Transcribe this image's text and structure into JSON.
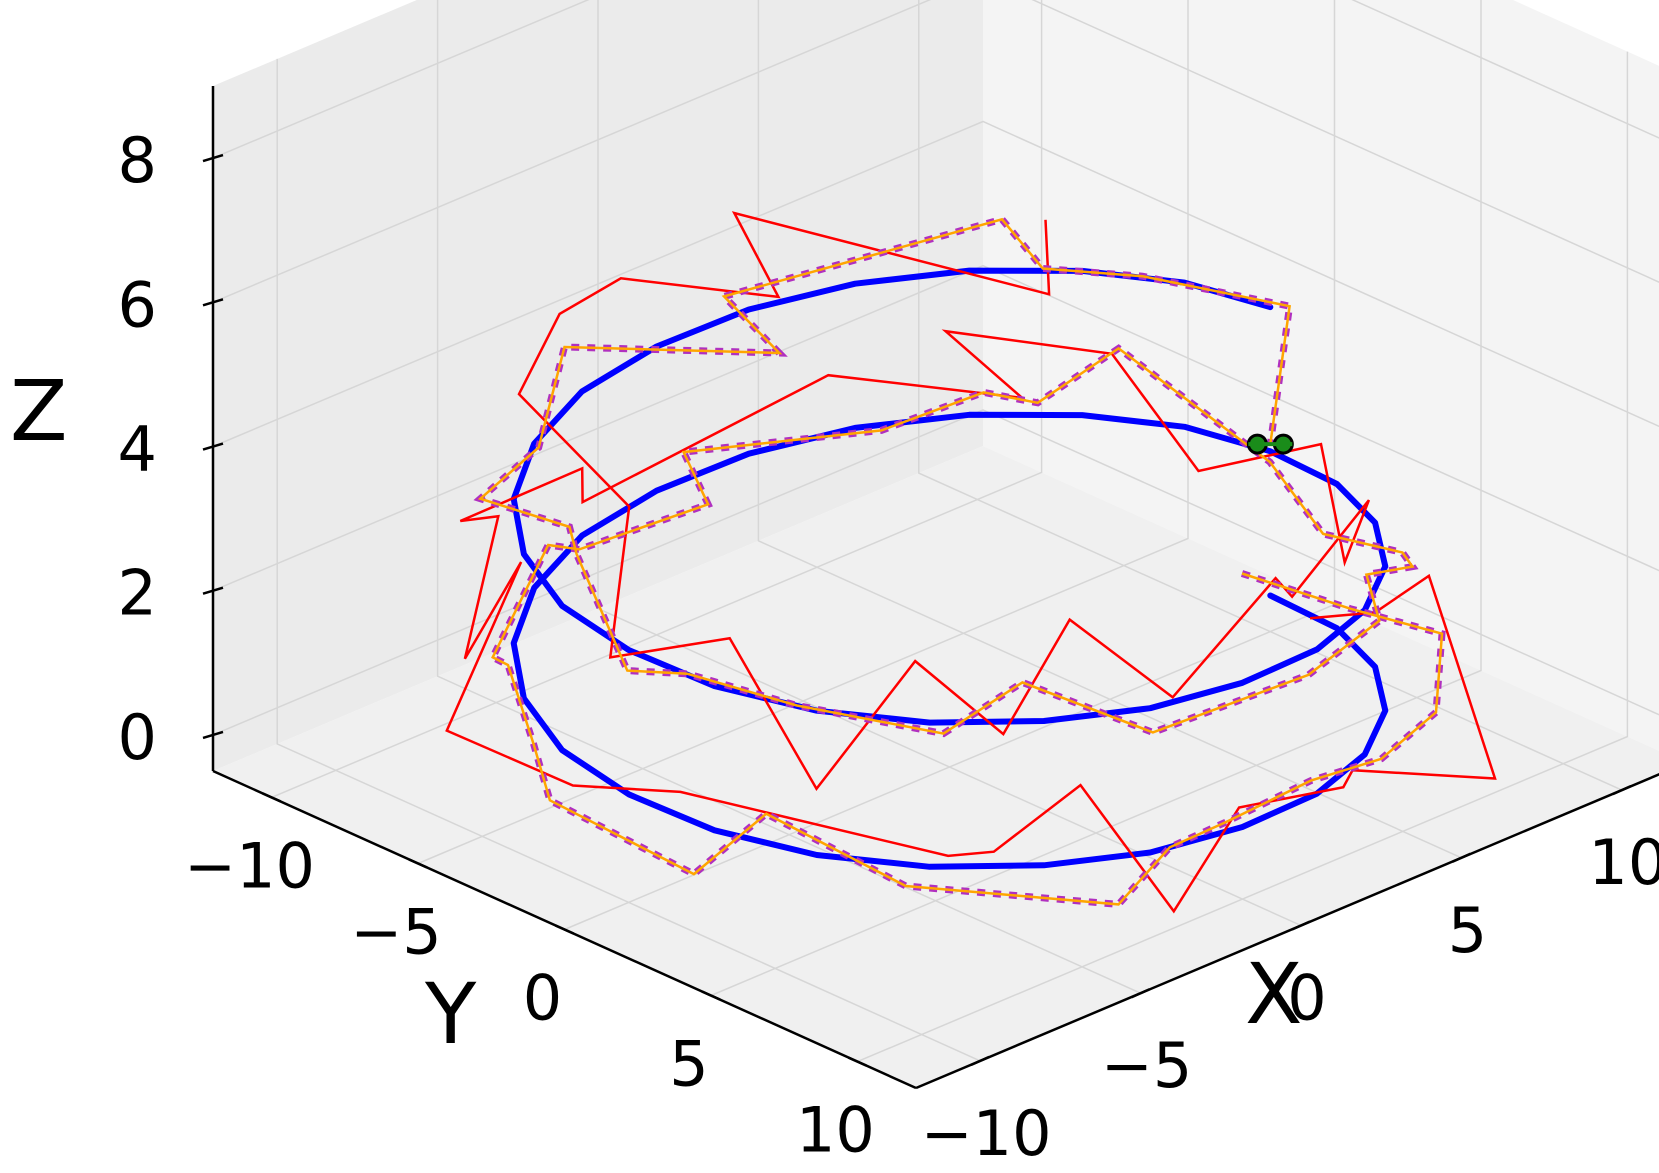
{
  "chart_data": {
    "type": "line3d",
    "title": "",
    "axes": {
      "x": {
        "label": "X",
        "ticks": [
          -10,
          -5,
          0,
          5,
          10
        ],
        "tick_labels": [
          "−10",
          "−5",
          "0",
          "5",
          "10"
        ],
        "lim": [
          -12,
          12
        ]
      },
      "y": {
        "label": "Y",
        "ticks": [
          -10,
          -5,
          0,
          5,
          10
        ],
        "tick_labels": [
          "−10",
          "−5",
          "0",
          "5",
          "10"
        ],
        "lim": [
          -12,
          12
        ]
      },
      "z": {
        "label": "Z",
        "ticks": [
          0,
          2,
          4,
          6,
          8
        ],
        "tick_labels": [
          "0",
          "2",
          "4",
          "6",
          "8"
        ],
        "lim": [
          -0.5,
          9
        ]
      }
    },
    "grid": true,
    "series": [
      {
        "style": "reference-helix",
        "color": "#0000ff",
        "x": [
          10,
          9.7,
          8.7,
          7.1,
          5,
          2.6,
          0,
          -2.6,
          -5,
          -7.1,
          -8.7,
          -9.7,
          -10,
          -9.7,
          -8.7,
          -7.1,
          -5,
          -2.6,
          0,
          2.6,
          5,
          7.1,
          8.7,
          9.7,
          10,
          9.7,
          8.7,
          7.1,
          5,
          2.6,
          0,
          -2.6,
          -5,
          -7.1,
          -8.7,
          -9.7,
          -10,
          -9.7,
          -8.7,
          -7.1,
          -5,
          -2.6,
          0,
          2.6,
          5,
          7.1,
          8.7,
          9.7,
          10
        ],
        "y": [
          0,
          2.6,
          5,
          7.1,
          8.7,
          9.7,
          10,
          9.7,
          8.7,
          7.1,
          5,
          2.6,
          0,
          -2.6,
          -5,
          -7.1,
          -8.7,
          -9.7,
          -10,
          -9.7,
          -8.7,
          -7.1,
          -5,
          -2.6,
          0,
          2.6,
          5,
          7.1,
          8.7,
          9.7,
          10,
          9.7,
          8.7,
          7.1,
          5,
          2.6,
          0,
          -2.6,
          -5,
          -7.1,
          -8.7,
          -9.7,
          -10,
          -9.7,
          -8.7,
          -7.1,
          -5,
          -2.6,
          0
        ],
        "z": [
          0,
          0.08,
          0.17,
          0.25,
          0.33,
          0.42,
          0.5,
          0.58,
          0.67,
          0.75,
          0.83,
          0.92,
          1,
          1.08,
          1.17,
          1.25,
          1.33,
          1.42,
          1.5,
          1.58,
          1.67,
          1.75,
          1.83,
          1.92,
          2,
          2.08,
          2.17,
          2.25,
          2.33,
          2.42,
          2.5,
          2.58,
          2.67,
          2.75,
          2.83,
          2.92,
          3,
          3.08,
          3.17,
          3.25,
          3.33,
          3.42,
          3.5,
          3.58,
          3.67,
          3.75,
          3.83,
          3.92,
          4
        ]
      },
      {
        "style": "noisy-measurement",
        "color": "#ff0000",
        "x": [
          10.6,
          9.8,
          11.2,
          7.6,
          3.8,
          1.5,
          0.9,
          -3.6,
          -2.4,
          -7.2,
          -6.8,
          -11.4,
          -11.1,
          -12.2,
          -5.5,
          -7.8,
          -3.2,
          -6.3,
          -0.4,
          -3.4,
          3.8,
          9.2,
          7.0,
          9.9,
          8.4,
          10.3,
          6.2,
          6.5,
          3.1,
          3.5,
          -1.9,
          -3.1,
          -8.0,
          -8.1,
          -10.9,
          -9.5,
          -10.3,
          -7.7,
          -5.2,
          -2.2,
          -0.2,
          2.7,
          3.7,
          10.5,
          11.3
        ],
        "y": [
          0.7,
          3.8,
          4.1,
          10.3,
          9.6,
          11.8,
          8.9,
          11.6,
          7.1,
          9.4,
          7.4,
          3.3,
          -0.7,
          -3.8,
          -8.6,
          -8.0,
          -11.9,
          -9.8,
          -12.1,
          -8.8,
          -8.3,
          -7.6,
          -7.8,
          -5.3,
          -0.7,
          1.4,
          6.7,
          7.2,
          8.3,
          7.3,
          9.7,
          7.5,
          10.6,
          7.7,
          7.4,
          2.9,
          -0.3,
          -2.5,
          -9.0,
          -10.9,
          -11.0,
          -8.8,
          -11.4,
          -8.1,
          -9.1
        ],
        "z": [
          -0.3,
          0.5,
          0.8,
          -0.2,
          0.5,
          1.1,
          0.4,
          0.3,
          1.0,
          1.4,
          0.9,
          1.9,
          1.2,
          1.6,
          1.8,
          1.0,
          1.4,
          2.3,
          1.5,
          2.2,
          2.7,
          1.5,
          2.8,
          2.4,
          1.9,
          2.3,
          2.4,
          3.3,
          2.8,
          2.8,
          2.6,
          3.5,
          3.4,
          3.9,
          2.6,
          3.6,
          2.9,
          4.1,
          4.0,
          4.2,
          4.3,
          3.9,
          4.4,
          2.6,
          3.3
        ]
      },
      {
        "style": "filtered-estimate",
        "color": "#ffa500",
        "dash_color": "#b030c0",
        "x": [
          9.3,
          10.3,
          9.6,
          8.5,
          5.7,
          2.5,
          -0.6,
          -1.9,
          -4.5,
          -8.3,
          -9.0,
          -11.8,
          -12.0,
          -10.5,
          -8.1,
          -7.3,
          -4.2,
          -3.6,
          0.6,
          1.3,
          5.0,
          8.0,
          8.5,
          10.2,
          10.9,
          7.9,
          8.0,
          7.4,
          5.6,
          3.9,
          1.6,
          -2.7,
          -4.3,
          -7.4,
          -8.5,
          -9.9,
          -10.5,
          -8.7,
          -8.1,
          -7.5,
          -5.5,
          -1.5,
          2.0,
          2.1,
          8.3,
          7.2,
          9.3,
          10.6,
          10.0
        ],
        "y": [
          -0.2,
          2.4,
          6.3,
          7.3,
          8.5,
          9.6,
          10.1,
          9.6,
          10.7,
          7.6,
          3.6,
          4.2,
          -0.5,
          -2.7,
          -6.2,
          -7.6,
          -9.1,
          -8.7,
          -8.9,
          -10.5,
          -7.8,
          -7.6,
          -6.3,
          -5.4,
          -1.0,
          4.1,
          6.7,
          7.7,
          8.1,
          10.4,
          10.5,
          9.9,
          7.2,
          7.9,
          4.1,
          1.9,
          0.5,
          -3.2,
          -4.1,
          -7.8,
          -8.0,
          -11.5,
          -8.0,
          -10.0,
          -7.3,
          -4.7,
          -3.6,
          0.0,
          0.0
        ],
        "z": [
          0.4,
          0.2,
          0.7,
          0.0,
          0.1,
          0.6,
          0.7,
          0.5,
          0.4,
          0.8,
          1.2,
          1.0,
          1.2,
          1.3,
          1.3,
          1.0,
          1.7,
          1.6,
          1.4,
          1.7,
          1.8,
          1.8,
          1.8,
          2.4,
          1.5,
          2.0,
          2.2,
          2.3,
          2.6,
          2.7,
          2.4,
          2.3,
          2.8,
          2.8,
          2.7,
          3.0,
          2.9,
          3.5,
          3.6,
          3.2,
          3.5,
          3.5,
          3.4,
          3.8,
          4.2,
          4.2,
          3.9,
          3.9,
          2.1
        ]
      }
    ],
    "end_marker": {
      "color": "#1a8c1a",
      "edge_color": "#000000",
      "x": 10.0,
      "y": 0.0,
      "z": 2.1
    }
  }
}
